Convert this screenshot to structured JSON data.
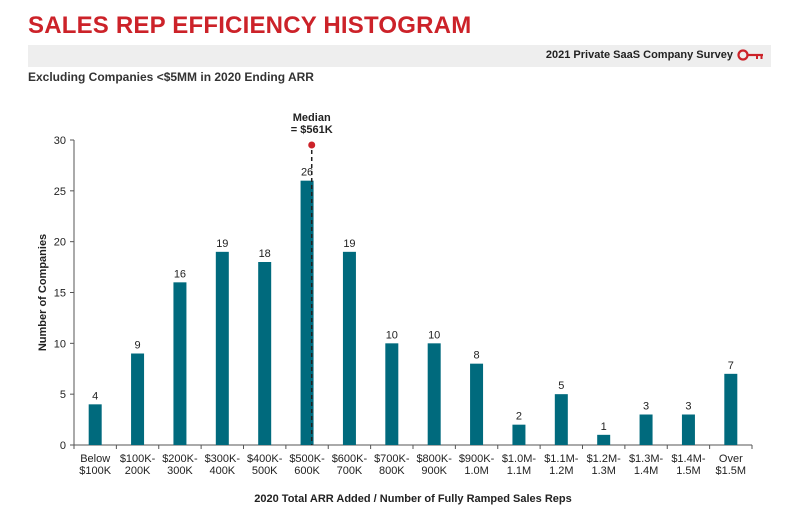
{
  "header": {
    "title": "SALES REP EFFICIENCY HISTOGRAM",
    "survey_label": "2021 Private SaaS Company Survey",
    "subtitle": "Excluding Companies <$5MM in 2020 Ending ARR",
    "icon": "key-icon"
  },
  "colors": {
    "title": "#cc2229",
    "bar": "#006a7d",
    "marker": "#cc2229"
  },
  "chart_data": {
    "type": "bar",
    "title": "",
    "xlabel": "2020 Total ARR Added / Number of Fully Ramped Sales Reps",
    "ylabel": "Number of Companies",
    "ylim": [
      0,
      30
    ],
    "yticks": [
      0,
      5,
      10,
      15,
      20,
      25,
      30
    ],
    "grid": false,
    "categories": [
      [
        "Below",
        "$100K"
      ],
      [
        "$100K-",
        "200K"
      ],
      [
        "$200K-",
        "300K"
      ],
      [
        "$300K-",
        "400K"
      ],
      [
        "$400K-",
        "500K"
      ],
      [
        "$500K-",
        "600K"
      ],
      [
        "$600K-",
        "700K"
      ],
      [
        "$700K-",
        "800K"
      ],
      [
        "$800K-",
        "900K"
      ],
      [
        "$900K-",
        "1.0M"
      ],
      [
        "$1.0M-",
        "1.1M"
      ],
      [
        "$1.1M-",
        "1.2M"
      ],
      [
        "$1.2M-",
        "1.3M"
      ],
      [
        "$1.3M-",
        "1.4M"
      ],
      [
        "$1.4M-",
        "1.5M"
      ],
      [
        "Over",
        "$1.5M"
      ]
    ],
    "values": [
      4,
      9,
      16,
      19,
      18,
      26,
      19,
      10,
      10,
      8,
      2,
      5,
      1,
      3,
      3,
      7
    ],
    "median": {
      "label_line1": "Median",
      "label_line2": "= $561K",
      "value_k": 561
    }
  }
}
